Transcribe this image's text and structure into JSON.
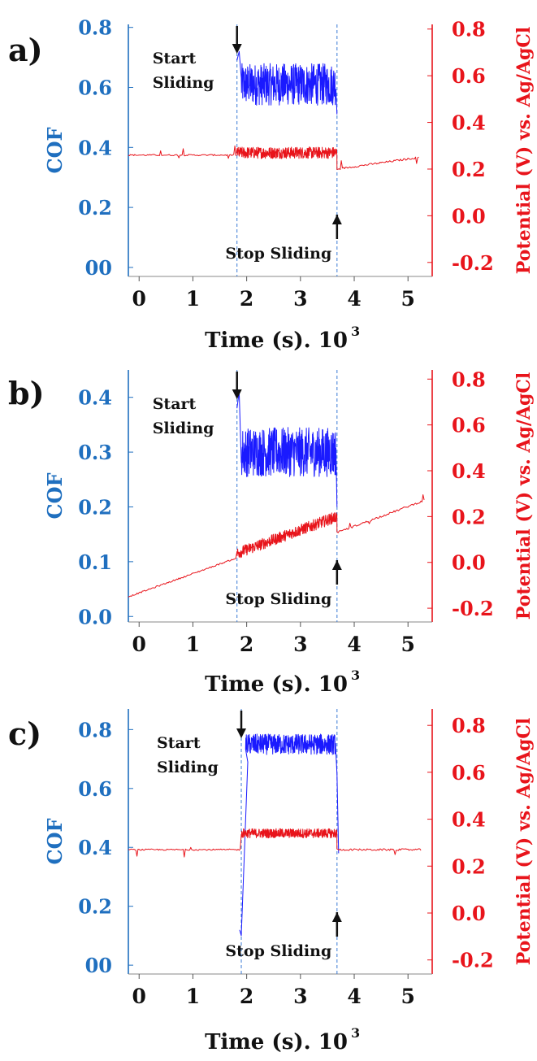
{
  "chart_data": [
    {
      "panel_label": "a)",
      "type": "line",
      "xlabel": "Time (s). 10",
      "xlabel_sup": "3",
      "ylabel_left": "COF",
      "ylabel_right": "Potential (V) vs. Ag/AgCl",
      "xlim": [
        -0.2,
        5.45
      ],
      "x_ticks": [
        "0",
        "1",
        "2",
        "3",
        "4",
        "5"
      ],
      "y_left_lim": [
        -0.03,
        0.81
      ],
      "y_left_ticks": [
        {
          "value": 0.0,
          "label": "00"
        },
        {
          "value": 0.2,
          "label": "0.2"
        },
        {
          "value": 0.4,
          "label": "0.4"
        },
        {
          "value": 0.6,
          "label": "0.6"
        },
        {
          "value": 0.8,
          "label": "0.8"
        }
      ],
      "y_right_lim": [
        -0.26,
        0.82
      ],
      "y_right_ticks": [
        {
          "value": -0.2,
          "label": "-0.2"
        },
        {
          "value": 0.0,
          "label": "0.0"
        },
        {
          "value": 0.2,
          "label": "0.2"
        },
        {
          "value": 0.4,
          "label": "0.4"
        },
        {
          "value": 0.6,
          "label": "0.6"
        },
        {
          "value": 0.8,
          "label": "0.8"
        }
      ],
      "start_x": 1.82,
      "stop_x": 3.68,
      "annotations": {
        "start": [
          "Start",
          "Sliding"
        ],
        "stop": "Stop Sliding"
      },
      "series": [
        {
          "axis": "left",
          "color": "#1a1aff",
          "sliding_mean": 0.61,
          "sliding_noise": 0.07,
          "initial_peak": 0.72
        },
        {
          "axis": "right",
          "color": "#e8141b",
          "pre_sliding": {
            "x": [
              -0.2,
              1.82
            ],
            "y": [
              0.26,
              0.26
            ]
          },
          "sliding_mean": 0.27,
          "sliding_noise": 0.025,
          "post_sliding": {
            "x": [
              3.68,
              5.2
            ],
            "y": [
              0.2,
              0.25
            ]
          }
        }
      ]
    },
    {
      "panel_label": "b)",
      "type": "line",
      "xlabel": "Time (s). 10",
      "xlabel_sup": "3",
      "ylabel_left": "COF",
      "ylabel_right": "Potential (V) vs. Ag/AgCl",
      "xlim": [
        -0.2,
        5.45
      ],
      "x_ticks": [
        "0",
        "1",
        "2",
        "3",
        "4",
        "5"
      ],
      "y_left_lim": [
        -0.01,
        0.45
      ],
      "y_left_ticks": [
        {
          "value": 0.0,
          "label": "0.0"
        },
        {
          "value": 0.1,
          "label": "0.1"
        },
        {
          "value": 0.2,
          "label": "0.2"
        },
        {
          "value": 0.3,
          "label": "0.3"
        },
        {
          "value": 0.4,
          "label": "0.4"
        }
      ],
      "y_right_lim": [
        -0.26,
        0.84
      ],
      "y_right_ticks": [
        {
          "value": -0.2,
          "label": "-0.2"
        },
        {
          "value": 0.0,
          "label": "0.0"
        },
        {
          "value": 0.2,
          "label": "0.2"
        },
        {
          "value": 0.4,
          "label": "0.4"
        },
        {
          "value": 0.6,
          "label": "0.6"
        },
        {
          "value": 0.8,
          "label": "0.8"
        }
      ],
      "start_x": 1.82,
      "stop_x": 3.68,
      "annotations": {
        "start": [
          "Start",
          "Sliding"
        ],
        "stop": "Stop Sliding"
      },
      "series": [
        {
          "axis": "left",
          "color": "#1a1aff",
          "sliding_mean": 0.3,
          "sliding_noise": 0.045,
          "initial_peak": 0.41
        },
        {
          "axis": "right",
          "color": "#e8141b",
          "pre_sliding": {
            "x": [
              -0.2,
              1.82
            ],
            "y": [
              -0.15,
              0.02
            ]
          },
          "sliding_trend": {
            "x": [
              1.82,
              3.68
            ],
            "y": [
              0.04,
              0.2
            ]
          },
          "sliding_noise": 0.025,
          "post_sliding": {
            "x": [
              3.68,
              5.3
            ],
            "y": [
              0.13,
              0.27
            ]
          }
        }
      ]
    },
    {
      "panel_label": "c)",
      "type": "line",
      "xlabel": "Time (s). 10",
      "xlabel_sup": "3",
      "ylabel_left": "COF",
      "ylabel_right": "Potential (V) vs. Ag/AgCl",
      "xlim": [
        -0.2,
        5.45
      ],
      "x_ticks": [
        "0",
        "1",
        "2",
        "3",
        "4",
        "5"
      ],
      "y_left_lim": [
        -0.03,
        0.87
      ],
      "y_left_ticks": [
        {
          "value": 0.0,
          "label": "00"
        },
        {
          "value": 0.2,
          "label": "0.2"
        },
        {
          "value": 0.4,
          "label": "0.4"
        },
        {
          "value": 0.6,
          "label": "0.6"
        },
        {
          "value": 0.8,
          "label": "0.8"
        }
      ],
      "y_right_lim": [
        -0.26,
        0.87
      ],
      "y_right_ticks": [
        {
          "value": -0.2,
          "label": "-0.2"
        },
        {
          "value": 0.0,
          "label": "0.0"
        },
        {
          "value": 0.2,
          "label": "0.2"
        },
        {
          "value": 0.4,
          "label": "0.4"
        },
        {
          "value": 0.6,
          "label": "0.6"
        },
        {
          "value": 0.8,
          "label": "0.8"
        }
      ],
      "start_x": 1.9,
      "stop_x": 3.68,
      "annotations": {
        "start": [
          "Start",
          "Sliding"
        ],
        "stop": "Stop Sliding"
      },
      "series": [
        {
          "axis": "left",
          "color": "#1a1aff",
          "sliding_mean": 0.75,
          "sliding_noise": 0.035,
          "initial_dip": 0.1
        },
        {
          "axis": "right",
          "color": "#e8141b",
          "pre_sliding": {
            "x": [
              -0.2,
              1.9
            ],
            "y": [
              0.27,
              0.27
            ]
          },
          "sliding_mean": 0.34,
          "sliding_noise": 0.02,
          "post_sliding": {
            "x": [
              3.68,
              5.25
            ],
            "y": [
              0.27,
              0.27
            ]
          }
        }
      ]
    }
  ],
  "colors": {
    "left_axis": "#1f6fbf",
    "right_axis": "#e8141b",
    "cof_line": "#1a1aff",
    "potential_line": "#e8141b",
    "marker_line": "#3a7bd5"
  }
}
